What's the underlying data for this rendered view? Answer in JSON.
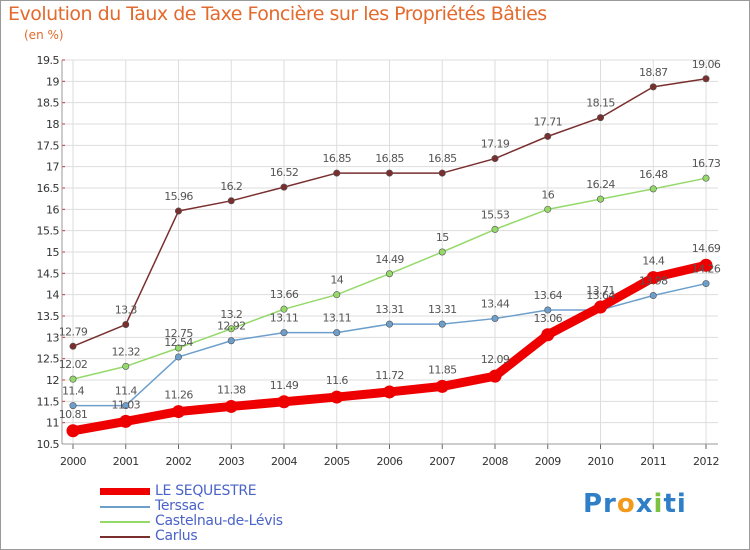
{
  "chart_data": {
    "type": "line",
    "title": "Evolution du Taux de Taxe Foncière sur les Propriétés Bâties",
    "ylabel": "(en %)",
    "xlabel": "",
    "categories": [
      "2000",
      "2001",
      "2002",
      "2003",
      "2004",
      "2005",
      "2006",
      "2007",
      "2008",
      "2009",
      "2010",
      "2011",
      "2012"
    ],
    "ylim": [
      10.5,
      19.5
    ],
    "yticks": [
      "10.5",
      "11",
      "11.5",
      "12",
      "12.5",
      "13",
      "13.5",
      "14",
      "14.5",
      "15",
      "15.5",
      "16",
      "16.5",
      "17",
      "17.5",
      "18",
      "18.5",
      "19",
      "19.5"
    ],
    "grid": true,
    "series": [
      {
        "name": "LE SEQUESTRE",
        "color": "#ee0000",
        "values": [
          10.81,
          11.03,
          11.26,
          11.38,
          11.49,
          11.6,
          11.72,
          11.85,
          12.09,
          13.06,
          13.71,
          14.4,
          14.69
        ],
        "labels": [
          "10.81",
          "11.03",
          "11.26",
          "11.38",
          "11.49",
          "11.6",
          "11.72",
          "11.85",
          "12.09",
          "13.06",
          "13.71",
          "14.4",
          "14.69"
        ]
      },
      {
        "name": "Terssac",
        "color": "#6d9fcd",
        "values": [
          11.4,
          11.4,
          12.54,
          12.92,
          13.11,
          13.11,
          13.31,
          13.31,
          13.44,
          13.64,
          13.64,
          13.98,
          14.26
        ],
        "labels": [
          "11.4",
          "11.4",
          "12.54",
          "12.92",
          "13.11",
          "13.11",
          "13.31",
          "13.31",
          "13.44",
          "13.64",
          "13.64",
          "13.98",
          "14.26"
        ]
      },
      {
        "name": "Castelnau-de-Lévis",
        "color": "#95d96a",
        "values": [
          12.02,
          12.32,
          12.75,
          13.2,
          13.66,
          14,
          14.49,
          15,
          15.53,
          16,
          16.24,
          16.48,
          16.73
        ],
        "labels": [
          "12.02",
          "12.32",
          "12.75",
          "13.2",
          "13.66",
          "14",
          "14.49",
          "15",
          "15.53",
          "16",
          "16.24",
          "16.48",
          "16.73"
        ]
      },
      {
        "name": "Carlus",
        "color": "#7a2f2f",
        "values": [
          12.79,
          13.3,
          15.96,
          16.2,
          16.52,
          16.85,
          16.85,
          16.85,
          17.19,
          17.71,
          18.15,
          18.87,
          19.06
        ],
        "labels": [
          "12.79",
          "13.3",
          "15.96",
          "16.2",
          "16.52",
          "16.85",
          "16.85",
          "16.85",
          "17.19",
          "17.71",
          "18.15",
          "18.87",
          "19.06"
        ]
      }
    ]
  },
  "logo": {
    "parts": [
      "Pr",
      "o",
      "x",
      "i",
      "ti"
    ]
  }
}
